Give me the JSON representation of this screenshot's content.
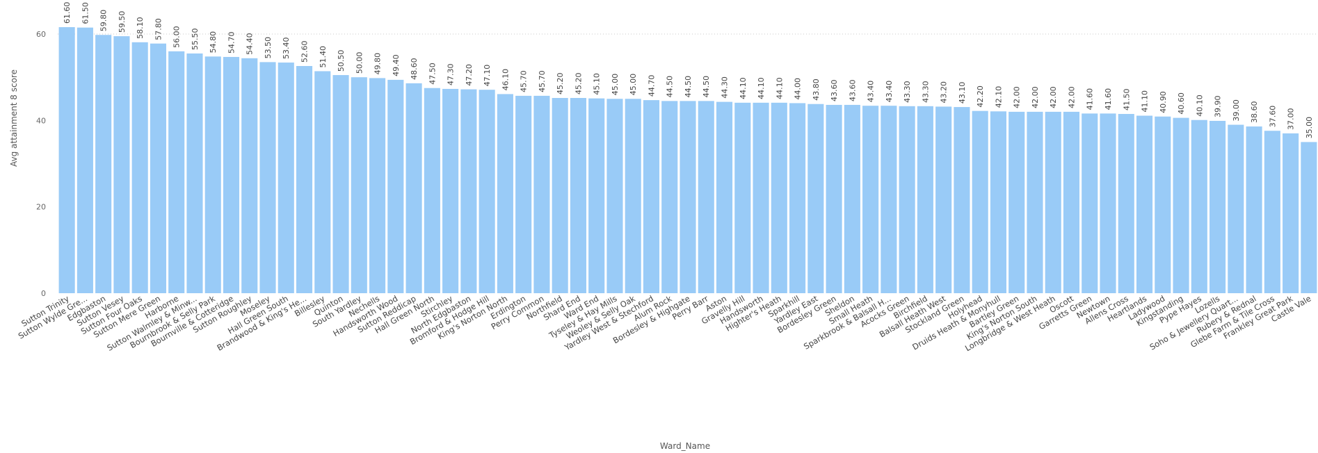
{
  "chart_data": {
    "type": "bar",
    "xlabel": "Ward_Name",
    "ylabel": "Avg attainment 8 score",
    "ylim": [
      0,
      62
    ],
    "yticks": [
      0,
      20,
      40,
      60
    ],
    "grid": "dotted at 60",
    "bar_color": "#99CBF7",
    "highlight_color": "#0078D7",
    "highlight_index": 77,
    "categories": [
      "Sutton Trinity",
      "Sutton Wylde Gre...",
      "Edgbaston",
      "Sutton Vesey",
      "Sutton Four Oaks",
      "Sutton Mere Green",
      "Harborne",
      "Sutton Walmley & Minw...",
      "Bournbrook & Selly Park",
      "Bournville & Cotteridge",
      "Sutton Roughley",
      "Moseley",
      "Hall Green South",
      "Brandwood & King's He...",
      "Billesley",
      "Quinton",
      "South Yardley",
      "Nechells",
      "Handsworth Wood",
      "Sutton Reddicap",
      "Hall Green North",
      "Stirchley",
      "North Edgbaston",
      "Bromford & Hodge Hill",
      "King's Norton North",
      "Erdington",
      "Perry Common",
      "Northfield",
      "Shard End",
      "Ward End",
      "Tyseley & Hay Mills",
      "Weoley & Selly Oak",
      "Yardley West & Stechford",
      "Alum Rock",
      "Bordesley & Highgate",
      "Perry Barr",
      "Aston",
      "Gravelly Hill",
      "Handsworth",
      "Highter's Heath",
      "Sparkhill",
      "Yardley East",
      "Bordesley Green",
      "Sheldon",
      "Small Heath",
      "Sparkbrook & Balsall H...",
      "Acocks Green",
      "Birchfield",
      "Balsall Heath West",
      "Stockland Green",
      "Holyhead",
      "Druids Heath & Monyhull",
      "Bartley Green",
      "King's Norton South",
      "Longbridge & West Heath",
      "Oscott",
      "Garretts Green",
      "Newtown",
      "Allens Cross",
      "Heartlands",
      "Ladywood",
      "Kingstanding",
      "Pype Hayes",
      "Lozells",
      "Soho & Jewellery Quart...",
      "Rubery & Rednal",
      "Glebe Farm & Tile Cross",
      "Frankley Great Park",
      "Castle Vale"
    ],
    "values": [
      61.6,
      61.5,
      59.8,
      59.5,
      58.1,
      57.8,
      56.0,
      55.5,
      54.8,
      54.7,
      54.4,
      53.5,
      53.4,
      52.6,
      51.4,
      50.5,
      50.0,
      49.8,
      49.4,
      48.6,
      47.5,
      47.3,
      47.2,
      47.1,
      46.1,
      45.7,
      45.7,
      45.2,
      45.2,
      45.1,
      45.0,
      45.0,
      44.7,
      44.5,
      44.5,
      44.5,
      44.3,
      44.1,
      44.1,
      44.1,
      44.0,
      43.8,
      43.6,
      43.6,
      43.4,
      43.4,
      43.3,
      43.3,
      43.2,
      43.1,
      42.2,
      42.1,
      42.0,
      42.0,
      42.0,
      42.0,
      41.6,
      41.6,
      41.5,
      41.1,
      40.9,
      40.6,
      40.1,
      39.9,
      39.0,
      38.6,
      37.6,
      37.0,
      35.0
    ],
    "value_labels": [
      "61.60",
      "61.50",
      "59.80",
      "59.50",
      "58.10",
      "57.80",
      "56.00",
      "55.50",
      "54.80",
      "54.70",
      "54.40",
      "53.50",
      "53.40",
      "52.60",
      "51.40",
      "50.50",
      "50.00",
      "49.80",
      "49.40",
      "48.60",
      "47.50",
      "47.30",
      "47.20",
      "47.10",
      "46.10",
      "45.70",
      "45.70",
      "45.20",
      "45.20",
      "45.10",
      "45.00",
      "45.00",
      "44.70",
      "44.50",
      "44.50",
      "44.50",
      "44.30",
      "44.10",
      "44.10",
      "44.10",
      "44.00",
      "43.80",
      "43.60",
      "43.60",
      "43.40",
      "43.40",
      "43.30",
      "43.30",
      "43.20",
      "43.10",
      "42.20",
      "42.10",
      "42.00",
      "42.00",
      "42.00",
      "42.00",
      "41.60",
      "41.60",
      "41.50",
      "41.10",
      "40.90",
      "40.60",
      "40.10",
      "39.90",
      "39.00",
      "38.60",
      "37.60",
      "37.00",
      "35.00"
    ]
  }
}
